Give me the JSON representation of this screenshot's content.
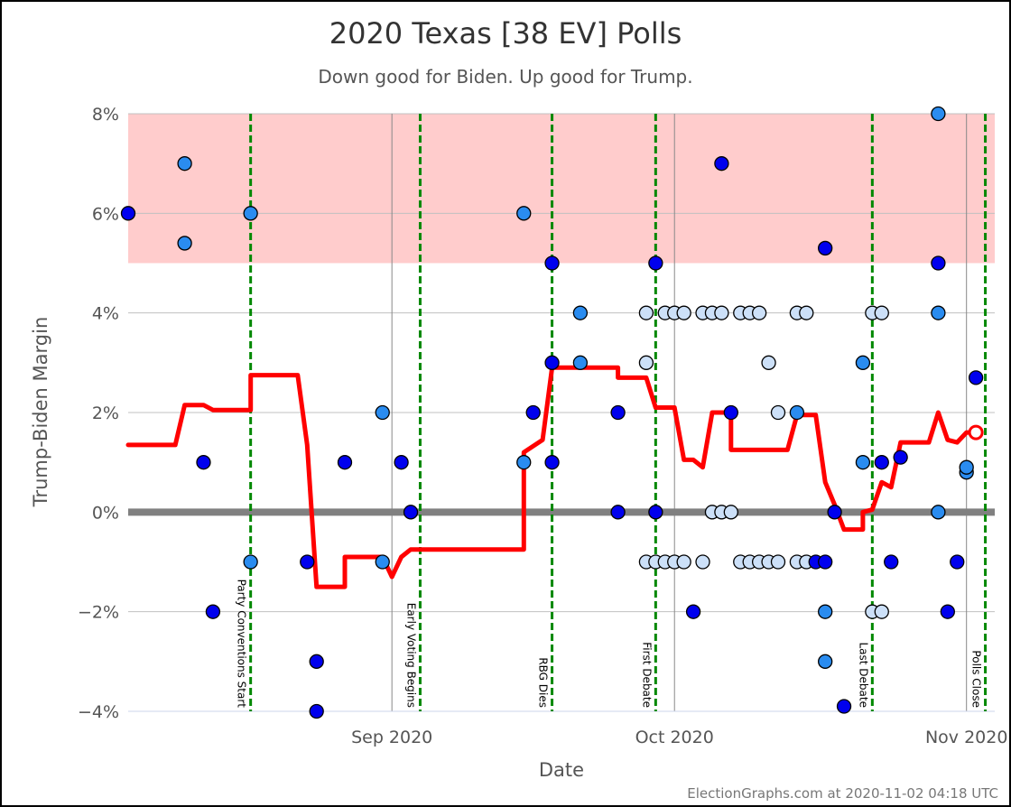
{
  "title": "2020 Texas [38 EV] Polls",
  "subtitle": "Down good for Biden. Up good for Trump.",
  "credit": "ElectionGraphs.com at 2020-11-02 04:18 UTC",
  "chart_data": {
    "type": "scatter",
    "title": "2020 Texas [38 EV] Polls",
    "subtitle": "Down good for Biden. Up good for Trump.",
    "xlabel": "Date",
    "ylabel": "Trump-Biden Margin",
    "xlim": [
      "2020-08-04",
      "2020-11-04"
    ],
    "ylim": [
      -4,
      8
    ],
    "x_ticks": [
      {
        "date": "2020-09-01",
        "label": "Sep 2020"
      },
      {
        "date": "2020-10-01",
        "label": "Oct 2020"
      },
      {
        "date": "2020-11-01",
        "label": "Nov 2020"
      }
    ],
    "y_ticks": [
      {
        "value": -4,
        "label": "−4%"
      },
      {
        "value": -2,
        "label": "−2%"
      },
      {
        "value": 0,
        "label": "0%"
      },
      {
        "value": 2,
        "label": "2%"
      },
      {
        "value": 4,
        "label": "4%"
      },
      {
        "value": 6,
        "label": "6%"
      },
      {
        "value": 8,
        "label": "8%"
      }
    ],
    "shaded_band": {
      "from": 5,
      "to": 8,
      "color": "#ffcccc"
    },
    "zero_line_color": "#808080",
    "colors": {
      "poll_dark": "#0000ee",
      "poll_medium": "#2a8cf0",
      "poll_light": "#cce0f8",
      "average": "#ff0000",
      "event_line": "#008800",
      "grid": "#c0c0c0"
    },
    "events": [
      {
        "date": "2020-08-17",
        "label": "Party Conventions Start"
      },
      {
        "date": "2020-09-04",
        "label": "Early Voting Begins"
      },
      {
        "date": "2020-09-18",
        "label": "RBG Dies"
      },
      {
        "date": "2020-09-29",
        "label": "First Debate"
      },
      {
        "date": "2020-10-22",
        "label": "Last Debate"
      },
      {
        "date": "2020-11-03",
        "label": "Polls Close"
      }
    ],
    "polls": [
      {
        "date": "2020-08-04",
        "margin": 6,
        "shade": "dark"
      },
      {
        "date": "2020-08-10",
        "margin": 7,
        "shade": "medium"
      },
      {
        "date": "2020-08-10",
        "margin": 5.4,
        "shade": "medium"
      },
      {
        "date": "2020-08-12",
        "margin": 1,
        "shade": "dark"
      },
      {
        "date": "2020-08-13",
        "margin": -2,
        "shade": "dark"
      },
      {
        "date": "2020-08-17",
        "margin": 6,
        "shade": "medium"
      },
      {
        "date": "2020-08-17",
        "margin": -1,
        "shade": "medium"
      },
      {
        "date": "2020-08-23",
        "margin": -1,
        "shade": "dark"
      },
      {
        "date": "2020-08-24",
        "margin": -3,
        "shade": "dark"
      },
      {
        "date": "2020-08-24",
        "margin": -4,
        "shade": "dark"
      },
      {
        "date": "2020-08-27",
        "margin": 1,
        "shade": "dark"
      },
      {
        "date": "2020-08-31",
        "margin": 2,
        "shade": "medium"
      },
      {
        "date": "2020-08-31",
        "margin": -1,
        "shade": "medium"
      },
      {
        "date": "2020-09-02",
        "margin": 1,
        "shade": "dark"
      },
      {
        "date": "2020-09-03",
        "margin": 0,
        "shade": "dark"
      },
      {
        "date": "2020-09-15",
        "margin": 6,
        "shade": "medium"
      },
      {
        "date": "2020-09-15",
        "margin": 1,
        "shade": "medium"
      },
      {
        "date": "2020-09-16",
        "margin": 2,
        "shade": "dark"
      },
      {
        "date": "2020-09-18",
        "margin": 5,
        "shade": "dark"
      },
      {
        "date": "2020-09-18",
        "margin": 3,
        "shade": "dark"
      },
      {
        "date": "2020-09-18",
        "margin": 1,
        "shade": "dark"
      },
      {
        "date": "2020-09-21",
        "margin": 4,
        "shade": "medium"
      },
      {
        "date": "2020-09-21",
        "margin": 3,
        "shade": "medium"
      },
      {
        "date": "2020-09-25",
        "margin": 2,
        "shade": "dark"
      },
      {
        "date": "2020-09-25",
        "margin": 0,
        "shade": "dark"
      },
      {
        "date": "2020-09-28",
        "margin": 3,
        "shade": "light"
      },
      {
        "date": "2020-09-28",
        "margin": -1,
        "shade": "light"
      },
      {
        "date": "2020-09-28",
        "margin": 4,
        "shade": "light"
      },
      {
        "date": "2020-09-29",
        "margin": 5,
        "shade": "dark"
      },
      {
        "date": "2020-09-29",
        "margin": 0,
        "shade": "dark"
      },
      {
        "date": "2020-09-29",
        "margin": -1,
        "shade": "light"
      },
      {
        "date": "2020-09-30",
        "margin": 4,
        "shade": "light"
      },
      {
        "date": "2020-09-30",
        "margin": -1,
        "shade": "light"
      },
      {
        "date": "2020-10-01",
        "margin": 4,
        "shade": "light"
      },
      {
        "date": "2020-10-01",
        "margin": -1,
        "shade": "light"
      },
      {
        "date": "2020-10-02",
        "margin": 4,
        "shade": "light"
      },
      {
        "date": "2020-10-02",
        "margin": -1,
        "shade": "light"
      },
      {
        "date": "2020-10-03",
        "margin": -2,
        "shade": "dark"
      },
      {
        "date": "2020-10-04",
        "margin": 4,
        "shade": "light"
      },
      {
        "date": "2020-10-04",
        "margin": -1,
        "shade": "light"
      },
      {
        "date": "2020-10-05",
        "margin": 4,
        "shade": "light"
      },
      {
        "date": "2020-10-05",
        "margin": 0,
        "shade": "light"
      },
      {
        "date": "2020-10-06",
        "margin": 4,
        "shade": "light"
      },
      {
        "date": "2020-10-06",
        "margin": 0,
        "shade": "light"
      },
      {
        "date": "2020-10-06",
        "margin": 7,
        "shade": "dark"
      },
      {
        "date": "2020-10-07",
        "margin": 2,
        "shade": "dark"
      },
      {
        "date": "2020-10-07",
        "margin": 0,
        "shade": "light"
      },
      {
        "date": "2020-10-08",
        "margin": 4,
        "shade": "light"
      },
      {
        "date": "2020-10-08",
        "margin": -1,
        "shade": "light"
      },
      {
        "date": "2020-10-09",
        "margin": 4,
        "shade": "light"
      },
      {
        "date": "2020-10-09",
        "margin": -1,
        "shade": "light"
      },
      {
        "date": "2020-10-10",
        "margin": 4,
        "shade": "light"
      },
      {
        "date": "2020-10-10",
        "margin": -1,
        "shade": "light"
      },
      {
        "date": "2020-10-11",
        "margin": 3,
        "shade": "light"
      },
      {
        "date": "2020-10-11",
        "margin": -1,
        "shade": "light"
      },
      {
        "date": "2020-10-12",
        "margin": 2,
        "shade": "light"
      },
      {
        "date": "2020-10-12",
        "margin": -1,
        "shade": "light"
      },
      {
        "date": "2020-10-14",
        "margin": 2,
        "shade": "medium"
      },
      {
        "date": "2020-10-14",
        "margin": 4,
        "shade": "light"
      },
      {
        "date": "2020-10-14",
        "margin": -1,
        "shade": "light"
      },
      {
        "date": "2020-10-15",
        "margin": 4,
        "shade": "light"
      },
      {
        "date": "2020-10-15",
        "margin": -1,
        "shade": "light"
      },
      {
        "date": "2020-10-16",
        "margin": -1,
        "shade": "dark"
      },
      {
        "date": "2020-10-17",
        "margin": 5.3,
        "shade": "dark"
      },
      {
        "date": "2020-10-17",
        "margin": -1,
        "shade": "dark"
      },
      {
        "date": "2020-10-17",
        "margin": -2,
        "shade": "medium"
      },
      {
        "date": "2020-10-17",
        "margin": -3,
        "shade": "medium"
      },
      {
        "date": "2020-10-18",
        "margin": 0,
        "shade": "dark"
      },
      {
        "date": "2020-10-19",
        "margin": -3.9,
        "shade": "dark"
      },
      {
        "date": "2020-10-21",
        "margin": 3,
        "shade": "medium"
      },
      {
        "date": "2020-10-21",
        "margin": 1,
        "shade": "medium"
      },
      {
        "date": "2020-10-22",
        "margin": 4,
        "shade": "light"
      },
      {
        "date": "2020-10-22",
        "margin": -2,
        "shade": "light"
      },
      {
        "date": "2020-10-23",
        "margin": 4,
        "shade": "light"
      },
      {
        "date": "2020-10-23",
        "margin": -2,
        "shade": "light"
      },
      {
        "date": "2020-10-23",
        "margin": 1,
        "shade": "dark"
      },
      {
        "date": "2020-10-24",
        "margin": -1,
        "shade": "dark"
      },
      {
        "date": "2020-10-25",
        "margin": 1.1,
        "shade": "dark"
      },
      {
        "date": "2020-10-29",
        "margin": 8,
        "shade": "medium"
      },
      {
        "date": "2020-10-29",
        "margin": 5,
        "shade": "dark"
      },
      {
        "date": "2020-10-29",
        "margin": 4,
        "shade": "medium"
      },
      {
        "date": "2020-10-29",
        "margin": 0,
        "shade": "medium"
      },
      {
        "date": "2020-10-30",
        "margin": -2,
        "shade": "dark"
      },
      {
        "date": "2020-10-31",
        "margin": -1,
        "shade": "dark"
      },
      {
        "date": "2020-11-01",
        "margin": 0.8,
        "shade": "medium"
      },
      {
        "date": "2020-11-01",
        "margin": 0.9,
        "shade": "medium"
      },
      {
        "date": "2020-11-02",
        "margin": 2.7,
        "shade": "dark"
      }
    ],
    "average": [
      {
        "date": "2020-08-04",
        "margin": 1.35
      },
      {
        "date": "2020-08-09",
        "margin": 1.35
      },
      {
        "date": "2020-08-10",
        "margin": 2.15
      },
      {
        "date": "2020-08-12",
        "margin": 2.15
      },
      {
        "date": "2020-08-13",
        "margin": 2.05
      },
      {
        "date": "2020-08-17",
        "margin": 2.05
      },
      {
        "date": "2020-08-17",
        "margin": 2.75
      },
      {
        "date": "2020-08-22",
        "margin": 2.75
      },
      {
        "date": "2020-08-23",
        "margin": 1.35
      },
      {
        "date": "2020-08-24",
        "margin": -1.5
      },
      {
        "date": "2020-08-27",
        "margin": -1.5
      },
      {
        "date": "2020-08-27",
        "margin": -0.9
      },
      {
        "date": "2020-08-31",
        "margin": -0.9
      },
      {
        "date": "2020-09-01",
        "margin": -1.3
      },
      {
        "date": "2020-09-02",
        "margin": -0.9
      },
      {
        "date": "2020-09-03",
        "margin": -0.75
      },
      {
        "date": "2020-09-15",
        "margin": -0.75
      },
      {
        "date": "2020-09-15",
        "margin": 1.2
      },
      {
        "date": "2020-09-17",
        "margin": 1.45
      },
      {
        "date": "2020-09-18",
        "margin": 2.9
      },
      {
        "date": "2020-09-25",
        "margin": 2.9
      },
      {
        "date": "2020-09-25",
        "margin": 2.7
      },
      {
        "date": "2020-09-28",
        "margin": 2.7
      },
      {
        "date": "2020-09-29",
        "margin": 2.1
      },
      {
        "date": "2020-10-01",
        "margin": 2.1
      },
      {
        "date": "2020-10-02",
        "margin": 1.05
      },
      {
        "date": "2020-10-03",
        "margin": 1.05
      },
      {
        "date": "2020-10-04",
        "margin": 0.9
      },
      {
        "date": "2020-10-05",
        "margin": 2.0
      },
      {
        "date": "2020-10-07",
        "margin": 2.0
      },
      {
        "date": "2020-10-07",
        "margin": 1.25
      },
      {
        "date": "2020-10-13",
        "margin": 1.25
      },
      {
        "date": "2020-10-14",
        "margin": 1.95
      },
      {
        "date": "2020-10-16",
        "margin": 1.95
      },
      {
        "date": "2020-10-17",
        "margin": 0.6
      },
      {
        "date": "2020-10-18",
        "margin": 0.15
      },
      {
        "date": "2020-10-19",
        "margin": -0.35
      },
      {
        "date": "2020-10-21",
        "margin": -0.35
      },
      {
        "date": "2020-10-21",
        "margin": 0
      },
      {
        "date": "2020-10-22",
        "margin": 0.05
      },
      {
        "date": "2020-10-23",
        "margin": 0.6
      },
      {
        "date": "2020-10-24",
        "margin": 0.5
      },
      {
        "date": "2020-10-25",
        "margin": 1.4
      },
      {
        "date": "2020-10-28",
        "margin": 1.4
      },
      {
        "date": "2020-10-29",
        "margin": 2.0
      },
      {
        "date": "2020-10-30",
        "margin": 1.45
      },
      {
        "date": "2020-10-31",
        "margin": 1.4
      },
      {
        "date": "2020-11-01",
        "margin": 1.6
      },
      {
        "date": "2020-11-02",
        "margin": 1.6
      }
    ],
    "average_endpoint": {
      "date": "2020-11-02",
      "margin": 1.6
    }
  }
}
